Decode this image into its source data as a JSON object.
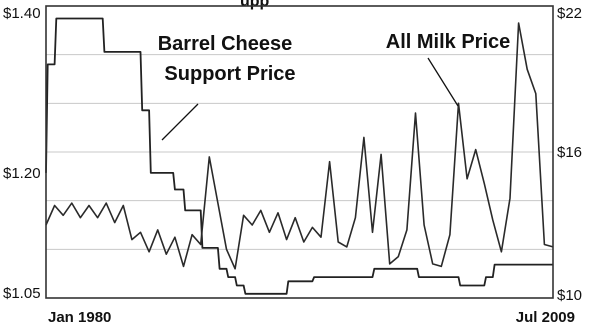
{
  "chart_data": {
    "type": "line",
    "title_fragment": "upp",
    "x_range": [
      "Jan 1980",
      "Jul 2009"
    ],
    "xticks": [
      {
        "label": "Jan 1980",
        "value": 1980.0
      },
      {
        "label": "Jul 2009",
        "value": 2009.5
      }
    ],
    "y_left": {
      "min": 1.05,
      "max": 1.4,
      "ticks": [
        {
          "label": "$1.40",
          "value": 1.4
        },
        {
          "label": "$1.20",
          "value": 1.2
        },
        {
          "label": "$1.05",
          "value": 1.05
        }
      ]
    },
    "y_right": {
      "min": 10,
      "max": 22,
      "ticks": [
        {
          "label": "$22",
          "value": 22
        },
        {
          "label": "$16",
          "value": 16
        },
        {
          "label": "$10",
          "value": 10
        }
      ]
    },
    "gridlines": true,
    "series": [
      {
        "label_lines": [
          "Barrel Cheese",
          "Support Price"
        ],
        "axis": "left",
        "step": true,
        "points": [
          [
            1980.0,
            1.2
          ],
          [
            1980.1,
            1.33
          ],
          [
            1980.5,
            1.33
          ],
          [
            1980.6,
            1.385
          ],
          [
            1983.3,
            1.385
          ],
          [
            1983.4,
            1.345
          ],
          [
            1985.5,
            1.345
          ],
          [
            1985.6,
            1.275
          ],
          [
            1986.0,
            1.275
          ],
          [
            1986.1,
            1.2
          ],
          [
            1987.4,
            1.2
          ],
          [
            1987.5,
            1.18
          ],
          [
            1988.0,
            1.18
          ],
          [
            1988.1,
            1.155
          ],
          [
            1989.0,
            1.155
          ],
          [
            1989.1,
            1.11
          ],
          [
            1990.0,
            1.11
          ],
          [
            1990.1,
            1.085
          ],
          [
            1990.5,
            1.085
          ],
          [
            1990.6,
            1.075
          ],
          [
            1991.0,
            1.075
          ],
          [
            1991.1,
            1.065
          ],
          [
            1991.5,
            1.065
          ],
          [
            1991.6,
            1.055
          ],
          [
            1994.0,
            1.055
          ],
          [
            1994.1,
            1.07
          ],
          [
            1995.5,
            1.07
          ],
          [
            1995.6,
            1.075
          ],
          [
            1999.0,
            1.075
          ],
          [
            1999.1,
            1.085
          ],
          [
            2001.6,
            1.085
          ],
          [
            2001.7,
            1.075
          ],
          [
            2004.0,
            1.075
          ],
          [
            2004.1,
            1.065
          ],
          [
            2005.5,
            1.065
          ],
          [
            2005.6,
            1.075
          ],
          [
            2006.0,
            1.075
          ],
          [
            2006.1,
            1.09
          ],
          [
            2009.5,
            1.09
          ]
        ]
      },
      {
        "label": "All Milk Price",
        "axis": "right",
        "points": [
          [
            1980.0,
            13.0
          ],
          [
            1980.5,
            13.8
          ],
          [
            1981.0,
            13.4
          ],
          [
            1981.5,
            13.9
          ],
          [
            1982.0,
            13.3
          ],
          [
            1982.5,
            13.8
          ],
          [
            1983.0,
            13.3
          ],
          [
            1983.5,
            13.9
          ],
          [
            1984.0,
            13.1
          ],
          [
            1984.5,
            13.8
          ],
          [
            1985.0,
            12.4
          ],
          [
            1985.5,
            12.7
          ],
          [
            1986.0,
            11.9
          ],
          [
            1986.5,
            12.8
          ],
          [
            1987.0,
            11.8
          ],
          [
            1987.5,
            12.5
          ],
          [
            1988.0,
            11.3
          ],
          [
            1988.5,
            12.6
          ],
          [
            1989.0,
            12.2
          ],
          [
            1989.5,
            15.8
          ],
          [
            1990.0,
            13.9
          ],
          [
            1990.5,
            12.0
          ],
          [
            1991.0,
            11.2
          ],
          [
            1991.5,
            13.4
          ],
          [
            1992.0,
            13.0
          ],
          [
            1992.5,
            13.6
          ],
          [
            1993.0,
            12.7
          ],
          [
            1993.5,
            13.5
          ],
          [
            1994.0,
            12.4
          ],
          [
            1994.5,
            13.3
          ],
          [
            1995.0,
            12.3
          ],
          [
            1995.5,
            12.9
          ],
          [
            1996.0,
            12.5
          ],
          [
            1996.5,
            15.6
          ],
          [
            1997.0,
            12.3
          ],
          [
            1997.5,
            12.1
          ],
          [
            1998.0,
            13.3
          ],
          [
            1998.5,
            16.6
          ],
          [
            1999.0,
            12.7
          ],
          [
            1999.5,
            15.9
          ],
          [
            2000.0,
            11.4
          ],
          [
            2000.5,
            11.7
          ],
          [
            2001.0,
            12.8
          ],
          [
            2001.5,
            17.6
          ],
          [
            2002.0,
            13.0
          ],
          [
            2002.5,
            11.4
          ],
          [
            2003.0,
            11.3
          ],
          [
            2003.5,
            12.6
          ],
          [
            2004.0,
            18.0
          ],
          [
            2004.5,
            14.9
          ],
          [
            2005.0,
            16.1
          ],
          [
            2005.5,
            14.7
          ],
          [
            2006.0,
            13.2
          ],
          [
            2006.5,
            11.9
          ],
          [
            2007.0,
            14.1
          ],
          [
            2007.5,
            21.3
          ],
          [
            2008.0,
            19.4
          ],
          [
            2008.5,
            18.4
          ],
          [
            2009.0,
            12.2
          ],
          [
            2009.5,
            12.1
          ]
        ]
      }
    ]
  }
}
